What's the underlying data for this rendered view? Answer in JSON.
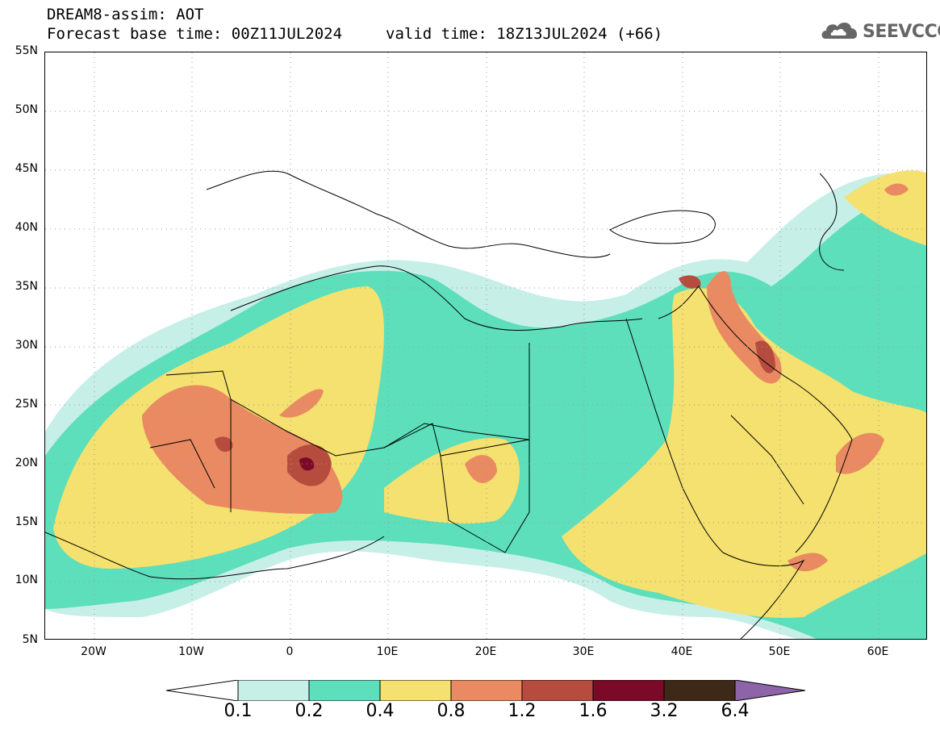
{
  "title": {
    "line1": "DREAM8-assim: AOT",
    "line2": "Forecast base time: 00Z11JUL2024",
    "valid": "valid time: 18Z13JUL2024 (+66)"
  },
  "logo": {
    "text": "SEEVCCC",
    "icon": "cloud-icon"
  },
  "map": {
    "lat_labels": [
      "55N",
      "50N",
      "45N",
      "40N",
      "35N",
      "30N",
      "25N",
      "20N",
      "15N",
      "10N",
      "5N"
    ],
    "lon_labels": [
      "20W",
      "10W",
      "0",
      "10E",
      "20E",
      "30E",
      "40E",
      "50E",
      "60E"
    ],
    "lon_range": [
      -25,
      65
    ],
    "lat_range": [
      5,
      55
    ]
  },
  "colorbar": {
    "labels": [
      "0.1",
      "0.2",
      "0.4",
      "0.8",
      "1.2",
      "1.6",
      "3.2",
      "6.4"
    ],
    "colors": [
      "#ffffff",
      "#c6efe8",
      "#5ddfbb",
      "#f4e16f",
      "#e98a62",
      "#b64c3e",
      "#7b0a28",
      "#3e2817",
      "#8d64a8"
    ]
  },
  "colors": {
    "c1": "#c6efe8",
    "c2": "#5ddfbb",
    "c3": "#f4e16f",
    "c4": "#e98a62",
    "c5": "#b64c3e",
    "c6": "#7b0a28"
  }
}
